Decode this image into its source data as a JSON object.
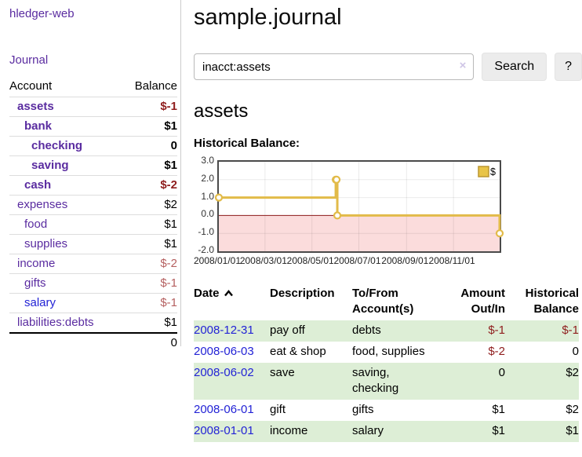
{
  "app": {
    "title": "hledger-web",
    "nav_journal": "Journal"
  },
  "sidebar": {
    "header": {
      "account": "Account",
      "balance": "Balance"
    },
    "accounts": [
      {
        "name": "assets",
        "depth": 1,
        "bold": true,
        "balance": "$-1",
        "balance_style": "neg",
        "link_style": "purple"
      },
      {
        "name": "bank",
        "depth": 2,
        "bold": true,
        "balance": "$1",
        "balance_style": "pos",
        "link_style": "purple"
      },
      {
        "name": "checking",
        "depth": 3,
        "bold": true,
        "balance": "0",
        "balance_style": "pos",
        "link_style": "purple"
      },
      {
        "name": "saving",
        "depth": 3,
        "bold": true,
        "balance": "$1",
        "balance_style": "pos",
        "link_style": "purple"
      },
      {
        "name": "cash",
        "depth": 2,
        "bold": true,
        "balance": "$-2",
        "balance_style": "neg",
        "link_style": "purple"
      },
      {
        "name": "expenses",
        "depth": 1,
        "bold": false,
        "balance": "$2",
        "balance_style": "pos",
        "link_style": "purple"
      },
      {
        "name": "food",
        "depth": 2,
        "bold": false,
        "balance": "$1",
        "balance_style": "pos",
        "link_style": "purple"
      },
      {
        "name": "supplies",
        "depth": 2,
        "bold": false,
        "balance": "$1",
        "balance_style": "pos",
        "link_style": "purple"
      },
      {
        "name": "income",
        "depth": 1,
        "bold": false,
        "balance": "$-2",
        "balance_style": "neg-soft",
        "link_style": "purple"
      },
      {
        "name": "gifts",
        "depth": 2,
        "bold": false,
        "balance": "$-1",
        "balance_style": "neg-soft",
        "link_style": "purple"
      },
      {
        "name": "salary",
        "depth": 2,
        "bold": false,
        "balance": "$-1",
        "balance_style": "neg-soft",
        "link_style": "blue"
      },
      {
        "name": "liabilities:debts",
        "depth": 1,
        "bold": false,
        "balance": "$1",
        "balance_style": "pos",
        "link_style": "purple"
      }
    ],
    "total": "0"
  },
  "main": {
    "title": "sample.journal",
    "search": {
      "value": "inacct:assets",
      "clear_icon": "×",
      "button": "Search",
      "help_button": "?"
    },
    "account_heading": "assets",
    "chart_label": "Historical Balance:"
  },
  "chart_data": {
    "type": "line",
    "title": "Historical Balance",
    "step": true,
    "legend": {
      "label": "$",
      "position": "top-right"
    },
    "ylim": [
      -2.0,
      3.0
    ],
    "y_ticks": [
      3.0,
      2.0,
      1.0,
      0.0,
      -1.0,
      -2.0
    ],
    "x_range_days": [
      0,
      365
    ],
    "x_ticks": [
      {
        "label": "2008/01/01",
        "day": 0
      },
      {
        "label": "2008/03/01",
        "day": 60
      },
      {
        "label": "2008/05/01",
        "day": 121
      },
      {
        "label": "2008/07/01",
        "day": 182
      },
      {
        "label": "2008/09/01",
        "day": 244
      },
      {
        "label": "2008/11/01",
        "day": 305
      }
    ],
    "points": [
      {
        "date": "2008-01-01",
        "day": 0,
        "value": 1
      },
      {
        "date": "2008-06-01",
        "day": 152,
        "value": 2
      },
      {
        "date": "2008-06-02",
        "day": 153,
        "value": 2
      },
      {
        "date": "2008-06-03",
        "day": 154,
        "value": 0
      },
      {
        "date": "2008-12-31",
        "day": 365,
        "value": -1
      }
    ],
    "colors": {
      "line": "#e2bb49",
      "marker_fill": "#ffffff",
      "negative_fill": "#fbdcdc",
      "zero_line": "#8c1a1a",
      "grid": "rgba(0,0,0,0.08)",
      "legend_swatch": "#e8c447",
      "legend_swatch_border": "#bb9630"
    }
  },
  "transactions": {
    "headers": {
      "date": "Date",
      "description": "Description",
      "accounts": "To/From Account(s)",
      "amount": "Amount Out/In",
      "balance": "Historical Balance"
    },
    "rows": [
      {
        "date": "2008-12-31",
        "description": "pay off",
        "accounts": "debts",
        "amount": "$-1",
        "amount_style": "neg",
        "balance": "$-1",
        "balance_style": "neg",
        "shaded": true
      },
      {
        "date": "2008-06-03",
        "description": "eat & shop",
        "accounts": "food, supplies",
        "amount": "$-2",
        "amount_style": "neg",
        "balance": "0",
        "balance_style": "pos",
        "shaded": false
      },
      {
        "date": "2008-06-02",
        "description": "save",
        "accounts": "saving, checking",
        "amount": "0",
        "amount_style": "pos",
        "balance": "$2",
        "balance_style": "pos",
        "shaded": true
      },
      {
        "date": "2008-06-01",
        "description": "gift",
        "accounts": "gifts",
        "amount": "$1",
        "amount_style": "pos",
        "balance": "$2",
        "balance_style": "pos",
        "shaded": false
      },
      {
        "date": "2008-01-01",
        "description": "income",
        "accounts": "salary",
        "amount": "$1",
        "amount_style": "pos",
        "balance": "$1",
        "balance_style": "pos",
        "shaded": true
      }
    ]
  }
}
